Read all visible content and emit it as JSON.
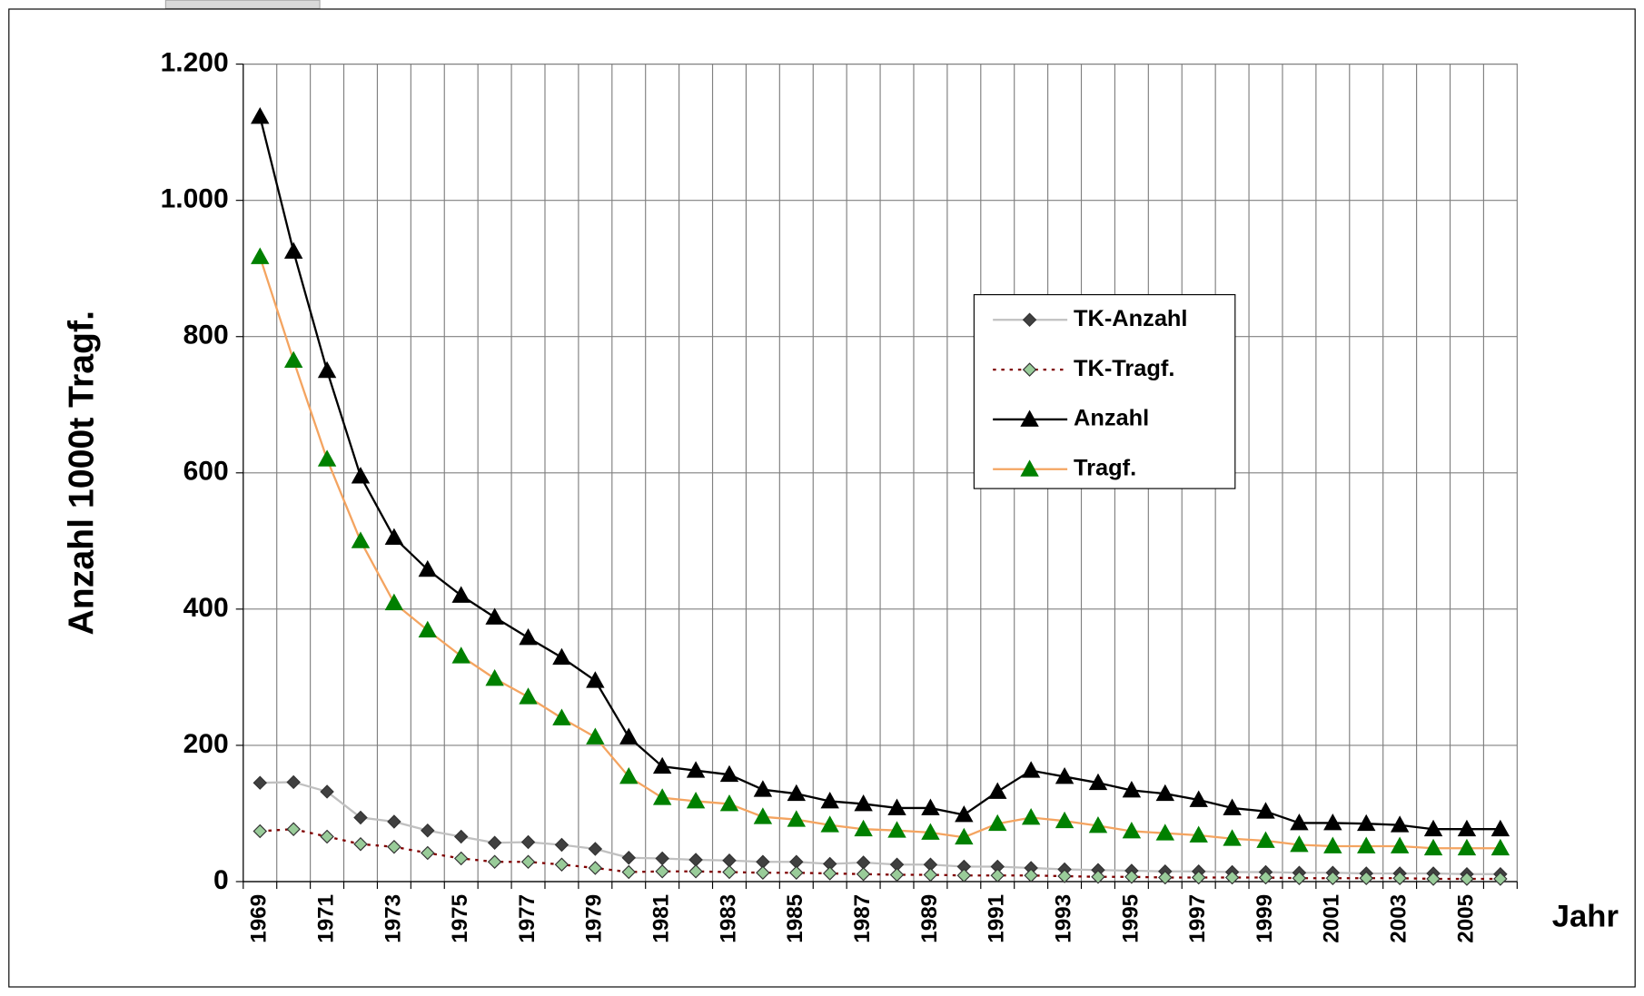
{
  "chart_data": {
    "type": "line",
    "x_label": "Jahr",
    "y_label": "Anzahl  1000t Tragf.",
    "categories": [
      "1969",
      null,
      "1971",
      null,
      "1973",
      null,
      "1975",
      null,
      "1977",
      null,
      "1979",
      null,
      "1981",
      null,
      "1983",
      null,
      "1985",
      null,
      "1987",
      null,
      "1989",
      null,
      "1991",
      null,
      "1993",
      null,
      "1995",
      null,
      "1997",
      null,
      "1999",
      null,
      "2001",
      null,
      "2003",
      null,
      "2005",
      null
    ],
    "series": [
      {
        "name": "TK-Anzahl",
        "color": "#c0c0c0",
        "marker": "diamond",
        "marker_color": "#404040",
        "line_style": "solid",
        "values": [
          145,
          146,
          132,
          94,
          88,
          75,
          66,
          57,
          58,
          54,
          48,
          35,
          34,
          32,
          31,
          29,
          29,
          26,
          28,
          25,
          25,
          22,
          22,
          20,
          18,
          17,
          16,
          15,
          15,
          14,
          14,
          13,
          13,
          12,
          12,
          12,
          11,
          11
        ]
      },
      {
        "name": "TK-Tragf.",
        "color": "#800000",
        "marker": "diamond",
        "marker_color": "#99cc99",
        "line_style": "dotted",
        "values": [
          74,
          77,
          66,
          55,
          51,
          42,
          34,
          29,
          29,
          25,
          20,
          14,
          15,
          15,
          14,
          13,
          13,
          12,
          11,
          10,
          10,
          9,
          9,
          9,
          8,
          7,
          7,
          6,
          6,
          6,
          6,
          5,
          5,
          5,
          5,
          4,
          4,
          4
        ]
      },
      {
        "name": "Anzahl",
        "color": "#000000",
        "marker": "triangle",
        "marker_color": "#000000",
        "line_style": "solid",
        "values": [
          1123,
          925,
          750,
          595,
          505,
          458,
          420,
          388,
          358,
          329,
          295,
          212,
          169,
          163,
          157,
          135,
          129,
          118,
          114,
          108,
          108,
          98,
          132,
          163,
          154,
          145,
          134,
          129,
          120,
          108,
          103,
          86,
          86,
          85,
          83,
          77,
          77,
          77
        ]
      },
      {
        "name": "Tragf.",
        "color": "#f4a460",
        "marker": "triangle",
        "marker_color": "#008000",
        "line_style": "solid",
        "values": [
          917,
          765,
          620,
          500,
          409,
          369,
          331,
          298,
          271,
          240,
          212,
          154,
          123,
          118,
          114,
          95,
          91,
          83,
          77,
          75,
          72,
          65,
          85,
          94,
          89,
          82,
          74,
          71,
          68,
          63,
          60,
          54,
          52,
          52,
          52,
          49,
          49,
          49
        ]
      }
    ],
    "ylim": [
      0,
      1200
    ],
    "yticks": [
      0,
      200,
      400,
      600,
      800,
      {
        "value": 1000,
        "label": "1.000"
      },
      {
        "value": 1200,
        "label": "1.200"
      }
    ],
    "grid": true
  }
}
